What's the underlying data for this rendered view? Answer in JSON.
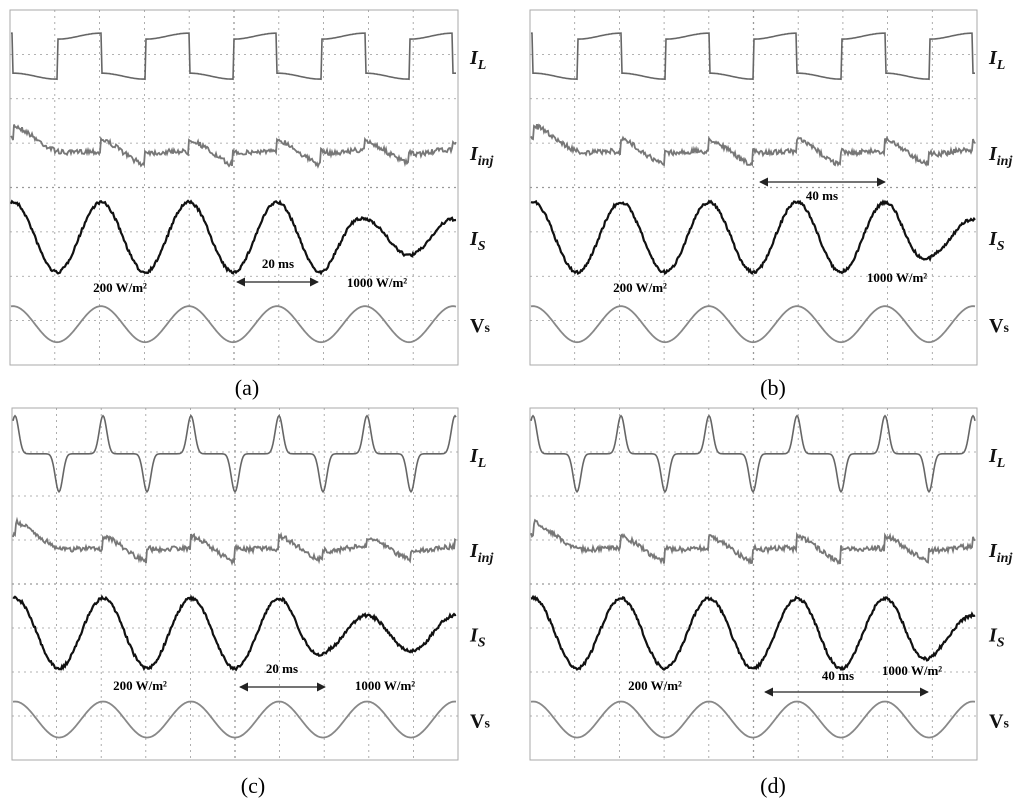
{
  "panels": [
    {
      "caption": "(a)",
      "traces": [
        {
          "symbol": "I",
          "subscript": "L"
        },
        {
          "symbol": "I",
          "subscript": "inj"
        },
        {
          "symbol": "I",
          "subscript": "S"
        },
        {
          "symbol": "V",
          "subscript": "s"
        }
      ],
      "annotations": {
        "interval": "20 ms",
        "before": "200 W/m²",
        "after": "1000 W/m²"
      }
    },
    {
      "caption": "(b)",
      "traces": [
        {
          "symbol": "I",
          "subscript": "L"
        },
        {
          "symbol": "I",
          "subscript": "inj"
        },
        {
          "symbol": "I",
          "subscript": "S"
        },
        {
          "symbol": "V",
          "subscript": "s"
        }
      ],
      "annotations": {
        "interval": "40 ms",
        "before": "200 W/m²",
        "after": "1000 W/m²"
      }
    },
    {
      "caption": "(c)",
      "traces": [
        {
          "symbol": "I",
          "subscript": "L"
        },
        {
          "symbol": "I",
          "subscript": "inj"
        },
        {
          "symbol": "I",
          "subscript": "S"
        },
        {
          "symbol": "V",
          "subscript": "s"
        }
      ],
      "annotations": {
        "interval": "20 ms",
        "before": "200 W/m²",
        "after": "1000 W/m²"
      }
    },
    {
      "caption": "(d)",
      "traces": [
        {
          "symbol": "I",
          "subscript": "L"
        },
        {
          "symbol": "I",
          "subscript": "inj"
        },
        {
          "symbol": "I",
          "subscript": "S"
        },
        {
          "symbol": "V",
          "subscript": "s"
        }
      ],
      "annotations": {
        "interval": "40 ms",
        "before": "200 W/m²",
        "after": "1000 W/m²"
      }
    }
  ]
}
